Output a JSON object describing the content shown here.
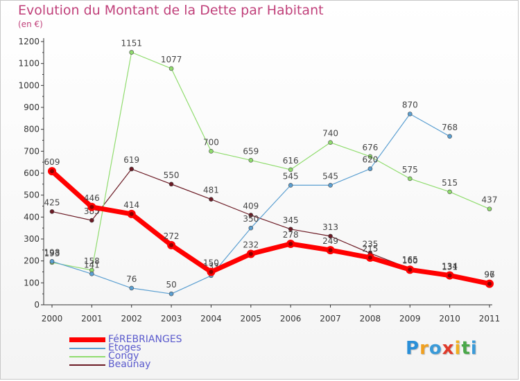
{
  "chart_data": {
    "type": "line",
    "title": "Evolution du Montant de la Dette par Habitant",
    "subtitle": "(en €)",
    "x": [
      "2000",
      "2001",
      "2002",
      "2003",
      "2004",
      "2005",
      "2006",
      "2007",
      "2008",
      "2009",
      "2010",
      "2011"
    ],
    "yticks": [
      "0",
      "100",
      "200",
      "300",
      "400",
      "500",
      "600",
      "700",
      "800",
      "900",
      "1000",
      "1100",
      "1200"
    ],
    "ylim": [
      0,
      1200
    ],
    "grid": false,
    "legend_position": "bottom-left",
    "series": [
      {
        "name": "Beaunay",
        "color": "#6b1a24",
        "width": 1.2,
        "values": [
          425,
          385,
          619,
          550,
          481,
          409,
          345,
          313,
          235,
          165,
          131,
          97
        ],
        "labels": [
          "425",
          "385",
          "619",
          "550",
          "481",
          "409",
          "345",
          "313",
          "235",
          "165",
          "131",
          "97"
        ]
      },
      {
        "name": "Congy",
        "color": "#90dc6e",
        "width": 1.2,
        "values": [
          193,
          158,
          1151,
          1077,
          700,
          659,
          616,
          740,
          676,
          575,
          515,
          437
        ],
        "labels": [
          "193",
          "158",
          "1151",
          "1077",
          "700",
          "659",
          "616",
          "740",
          "676",
          "575",
          "515",
          "437"
        ]
      },
      {
        "name": "Etoges",
        "color": "#5b9fd1",
        "width": 1.2,
        "values": [
          198,
          141,
          76,
          50,
          133,
          350,
          545,
          545,
          620,
          870,
          768,
          null
        ],
        "labels": [
          "198",
          "141",
          "76",
          "50",
          "133",
          "350",
          "545",
          "545",
          "620",
          "870",
          "768",
          ""
        ]
      },
      {
        "name": "FéREBRIANGES",
        "color": "#ff0000",
        "width": 7,
        "values": [
          609,
          446,
          414,
          272,
          150,
          232,
          278,
          249,
          215,
          160,
          134,
          96
        ],
        "labels": [
          "609",
          "446",
          "414",
          "272",
          "150",
          "232",
          "278",
          "249",
          "215",
          "160",
          "134",
          "96"
        ]
      }
    ]
  },
  "legend": {
    "items": [
      {
        "label": "FéREBRIANGES",
        "color": "#ff0000"
      },
      {
        "label": "Etoges",
        "color": "#5b9fd1"
      },
      {
        "label": "Congy",
        "color": "#90dc6e"
      },
      {
        "label": "Beaunay",
        "color": "#6b1a24"
      }
    ]
  },
  "logo": {
    "letters": [
      "P",
      "r",
      "o",
      "x",
      "i",
      "t",
      "i"
    ],
    "colors": [
      "#2a8fd8",
      "#f0a020",
      "#3a9ad8",
      "#e03a2a",
      "#f0b020",
      "#4aa84a",
      "#3a9ad8"
    ]
  }
}
